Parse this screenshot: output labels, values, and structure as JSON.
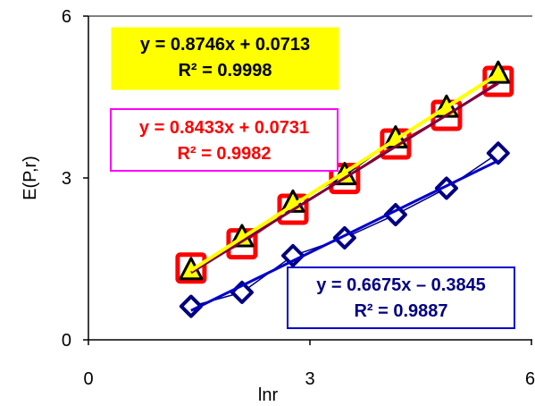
{
  "chart_data": {
    "type": "scatter",
    "xlabel": "lnr",
    "ylabel": "E(P,r)",
    "xlim": [
      0,
      6
    ],
    "ylim": [
      0,
      6
    ],
    "x_ticks": [
      "0",
      "3",
      "6"
    ],
    "y_ticks": [
      "0",
      "3",
      "6"
    ],
    "grid": false,
    "series": [
      {
        "marker": "square",
        "color": "#ff0000",
        "x": [
          1.39,
          2.08,
          2.77,
          3.47,
          4.16,
          4.85,
          5.55
        ],
        "y": [
          1.33,
          1.78,
          2.42,
          2.99,
          3.63,
          4.16,
          4.79
        ],
        "trendline": {
          "slope": 0.8433,
          "intercept": 0.0731,
          "color": "#7a003c"
        }
      },
      {
        "marker": "triangle",
        "color": "#000000",
        "fill": "#ffff00",
        "x": [
          1.39,
          2.08,
          2.77,
          3.47,
          4.16,
          4.85,
          5.55
        ],
        "y": [
          1.28,
          1.89,
          2.53,
          3.04,
          3.72,
          4.29,
          4.92
        ],
        "trendline": {
          "slope": 0.8746,
          "intercept": 0.0713,
          "color": "#ffff00"
        }
      },
      {
        "marker": "diamond",
        "color": "#000080",
        "x": [
          1.39,
          2.08,
          2.77,
          3.47,
          4.16,
          4.85,
          5.55
        ],
        "y": [
          0.62,
          0.88,
          1.56,
          1.89,
          2.32,
          2.81,
          3.46
        ],
        "trendline": {
          "slope": 0.6675,
          "intercept": -0.3845,
          "color": "#0000cc"
        }
      }
    ],
    "annotations": [
      {
        "eq": "y = 0.8746x + 0.0713",
        "r2": "R² = 0.9998",
        "text_color": "#000000",
        "box_fill": "#ffff00",
        "box_border": "#ffff00"
      },
      {
        "eq": "y = 0.8433x + 0.0731",
        "r2": "R² = 0.9982",
        "text_color": "#ff0000",
        "box_fill": "#ffffff",
        "box_border": "#ff00ff"
      },
      {
        "eq": "y = 0.6675x – 0.3845",
        "r2": "R² = 0.9887",
        "text_color": "#000080",
        "box_fill": "#ffffff",
        "box_border": "#0000cc"
      }
    ]
  }
}
